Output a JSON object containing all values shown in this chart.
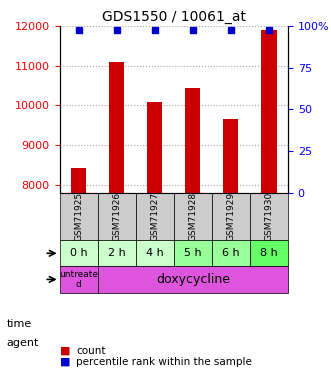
{
  "title": "GDS1550 / 10061_at",
  "samples": [
    "GSM71925",
    "GSM71926",
    "GSM71927",
    "GSM71928",
    "GSM71929",
    "GSM71930"
  ],
  "counts": [
    8430,
    11100,
    10100,
    10450,
    9650,
    11900
  ],
  "percentile_ranks": [
    98,
    98,
    98,
    98,
    98,
    98
  ],
  "ylim_left": [
    7800,
    12000
  ],
  "ylim_right": [
    0,
    100
  ],
  "yticks_left": [
    8000,
    9000,
    10000,
    11000,
    12000
  ],
  "yticks_right": [
    0,
    25,
    50,
    75,
    100
  ],
  "time_labels": [
    "0 h",
    "2 h",
    "4 h",
    "5 h",
    "6 h",
    "8 h"
  ],
  "time_bg_colors": [
    "#ccffcc",
    "#ccffcc",
    "#ccffcc",
    "#99ff99",
    "#99ff99",
    "#66ff66"
  ],
  "bar_color": "#cc0000",
  "percentile_color": "#0000cc",
  "bar_width": 0.4,
  "grid_color": "#aaaaaa",
  "sample_bg_color": "#cccccc",
  "agent_magenta": "#dd55dd",
  "legend_count_color": "#cc0000",
  "legend_pct_color": "#0000cc"
}
